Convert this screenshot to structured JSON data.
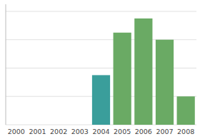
{
  "chart_data": {
    "type": "bar",
    "categories": [
      "2000",
      "2001",
      "2002",
      "2003",
      "2004",
      "2005",
      "2006",
      "2007",
      "2008"
    ],
    "values": [
      0,
      0,
      0,
      0,
      35,
      65,
      75,
      60,
      20
    ],
    "colors": [
      "#6aaa64",
      "#6aaa64",
      "#6aaa64",
      "#6aaa64",
      "#3a9e9b",
      "#6aaa64",
      "#6aaa64",
      "#6aaa64",
      "#6aaa64"
    ],
    "ylim": [
      0,
      85
    ],
    "yticks": [
      0,
      20,
      40,
      60,
      80
    ],
    "grid": true,
    "tick_labels": "x"
  }
}
